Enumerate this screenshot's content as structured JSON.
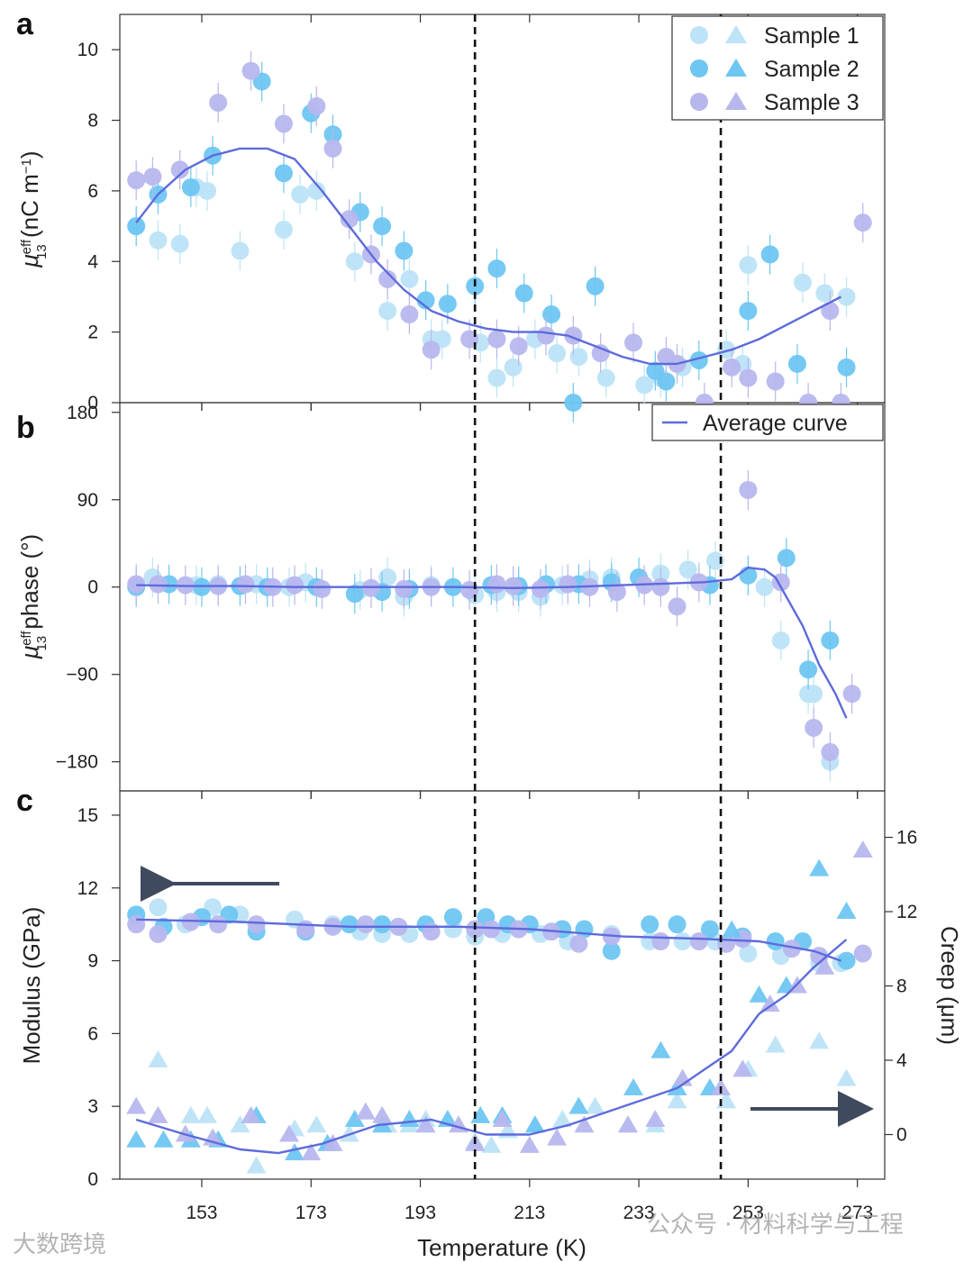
{
  "colors": {
    "sample1": "#BDE3F7",
    "sample2": "#6EC6F2",
    "sample3": "#B7B7EE",
    "average": "#5E6BDB",
    "arrow": "#3F4A5E",
    "frame": "#333333"
  },
  "chart_data": [
    {
      "type": "scatter",
      "panel_label": "a",
      "ylabel_main": "μ",
      "ylabel_sup": "eff",
      "ylabel_sub": "13",
      "ylabel_rest": " (nC m",
      "ylabel_exp": "−1",
      "ylabel_end": ")",
      "ylim": [
        0,
        11
      ],
      "yticks": [
        "0",
        "2",
        "4",
        "6",
        "8",
        "10"
      ],
      "ytick_values": [
        0,
        2,
        4,
        6,
        8,
        10
      ],
      "legend": [
        "Sample 1",
        "Sample 2",
        "Sample 3"
      ],
      "series": [
        {
          "name": "Sample 1",
          "x": [
            141,
            145,
            149,
            152,
            154,
            160,
            168,
            171,
            174,
            181,
            187,
            191,
            195,
            197,
            204,
            207,
            210,
            214,
            218,
            222,
            227,
            234,
            237,
            241,
            249,
            252,
            253,
            263,
            267,
            271
          ],
          "y": [
            5.0,
            4.6,
            4.5,
            6.1,
            6.0,
            4.3,
            4.9,
            5.9,
            6.0,
            4.0,
            2.6,
            3.5,
            1.8,
            1.8,
            1.7,
            0.7,
            1.0,
            1.8,
            1.4,
            1.3,
            0.7,
            0.5,
            0.7,
            1.0,
            1.5,
            1.1,
            3.9,
            3.4,
            3.1,
            3.0
          ]
        },
        {
          "name": "Sample 2",
          "x": [
            141,
            145,
            151,
            155,
            164,
            168,
            173,
            177,
            182,
            186,
            190,
            194,
            198,
            203,
            207,
            212,
            217,
            221,
            225,
            236,
            238,
            244,
            253,
            257,
            262,
            271
          ],
          "y": [
            5.0,
            5.9,
            6.1,
            7.0,
            9.1,
            6.5,
            8.2,
            7.6,
            5.4,
            5.0,
            4.3,
            2.9,
            2.8,
            3.3,
            3.8,
            3.1,
            2.5,
            0.0,
            3.3,
            0.9,
            0.6,
            1.2,
            2.6,
            4.2,
            1.1,
            1.0
          ]
        },
        {
          "name": "Sample 3",
          "x": [
            141,
            144,
            149,
            156,
            162,
            168,
            174,
            177,
            180,
            184,
            187,
            191,
            195,
            202,
            207,
            211,
            216,
            221,
            226,
            232,
            238,
            240,
            245,
            250,
            253,
            258,
            264,
            268,
            270,
            274
          ],
          "y": [
            6.3,
            6.4,
            6.6,
            8.5,
            9.4,
            7.9,
            8.4,
            7.2,
            5.2,
            4.2,
            3.5,
            2.5,
            1.5,
            1.8,
            1.8,
            1.6,
            1.9,
            1.9,
            1.4,
            1.7,
            1.3,
            1.1,
            0.0,
            1.0,
            0.7,
            0.6,
            0.0,
            2.6,
            0.0,
            5.1
          ]
        }
      ],
      "average_curve": {
        "x": [
          141,
          145,
          150,
          155,
          160,
          165,
          170,
          175,
          180,
          185,
          190,
          195,
          200,
          205,
          210,
          215,
          220,
          225,
          230,
          235,
          240,
          245,
          250,
          255,
          260,
          265,
          270
        ],
        "y": [
          5.1,
          5.9,
          6.6,
          7.0,
          7.2,
          7.2,
          6.9,
          6.0,
          5.0,
          4.0,
          3.2,
          2.6,
          2.3,
          2.1,
          2.0,
          2.0,
          1.9,
          1.6,
          1.3,
          1.1,
          1.1,
          1.3,
          1.5,
          1.8,
          2.2,
          2.6,
          3.0
        ]
      }
    },
    {
      "type": "scatter",
      "panel_label": "b",
      "ylabel_main": "μ",
      "ylabel_sup": "eff",
      "ylabel_sub": "13",
      "ylabel_rest": " phase (°)",
      "ylim": [
        -210,
        190
      ],
      "yticks": [
        "180",
        "90",
        "0",
        "−90",
        "−180"
      ],
      "ytick_values": [
        180,
        90,
        0,
        -90,
        -180
      ],
      "legend": [
        "Average curve"
      ],
      "series": [
        {
          "name": "Sample 1",
          "x": [
            144,
            152,
            156,
            163,
            169,
            172,
            182,
            187,
            190,
            195,
            203,
            207,
            211,
            215,
            219,
            224,
            228,
            237,
            242,
            247,
            256,
            259,
            264,
            265,
            268
          ],
          "y": [
            10,
            2,
            3,
            3,
            0,
            5,
            -3,
            10,
            -10,
            2,
            -8,
            -5,
            -5,
            -10,
            2,
            8,
            10,
            14,
            18,
            27,
            0,
            -55,
            -110,
            -110,
            -180
          ]
        },
        {
          "name": "Sample 2",
          "x": [
            141,
            147,
            153,
            160,
            165,
            174,
            181,
            186,
            191,
            199,
            206,
            211,
            216,
            222,
            228,
            233,
            246,
            253,
            260,
            264,
            268
          ],
          "y": [
            0,
            3,
            0,
            1,
            0,
            0,
            -7,
            -5,
            -2,
            0,
            2,
            1,
            3,
            3,
            5,
            10,
            2,
            12,
            30,
            -85,
            -55
          ]
        },
        {
          "name": "Sample 3",
          "x": [
            141,
            145,
            150,
            156,
            161,
            166,
            170,
            175,
            184,
            190,
            195,
            202,
            207,
            210,
            215,
            220,
            224,
            229,
            234,
            237,
            240,
            244,
            253,
            259,
            265,
            268,
            272
          ],
          "y": [
            3,
            3,
            2,
            1,
            3,
            0,
            2,
            -2,
            -1,
            -2,
            0,
            -3,
            3,
            1,
            -2,
            3,
            0,
            -5,
            2,
            0,
            -20,
            5,
            100,
            5,
            -145,
            -170,
            -110
          ]
        }
      ],
      "average_curve": {
        "x": [
          141,
          150,
          160,
          170,
          180,
          190,
          200,
          210,
          220,
          230,
          240,
          245,
          250,
          253,
          256,
          258,
          260,
          263,
          266,
          269,
          271
        ],
        "y": [
          2,
          1,
          1,
          0,
          0,
          0,
          0,
          -1,
          0,
          2,
          4,
          5,
          8,
          20,
          18,
          10,
          -10,
          -40,
          -80,
          -110,
          -135
        ]
      }
    },
    {
      "type": "scatter",
      "panel_label": "c",
      "ylabel": "Modulus (GPa)",
      "ylabel_right": "Creep (μm)",
      "xlabel": "Temperature (K)",
      "xlim": [
        138,
        278
      ],
      "xticks": [
        "153",
        "173",
        "193",
        "213",
        "233",
        "253",
        "273"
      ],
      "xtick_values": [
        153,
        173,
        193,
        213,
        233,
        253,
        273
      ],
      "ylim": [
        0,
        16
      ],
      "yticks": [
        "0",
        "3",
        "6",
        "9",
        "12",
        "15"
      ],
      "ytick_values": [
        0,
        3,
        6,
        9,
        12,
        15
      ],
      "ylim_right": [
        -2.4,
        18.5
      ],
      "yticks_right": [
        "0",
        "4",
        "8",
        "12",
        "16"
      ],
      "ytick_values_right": [
        0,
        4,
        8,
        12,
        16
      ],
      "modulus_series": [
        {
          "name": "Sample 1",
          "x": [
            141,
            145,
            150,
            155,
            160,
            170,
            177,
            182,
            186,
            191,
            199,
            203,
            208,
            215,
            220,
            228,
            235,
            241,
            247,
            253,
            259,
            266,
            270
          ],
          "y": [
            10.9,
            11.2,
            10.5,
            11.2,
            10.9,
            10.7,
            10.5,
            10.2,
            10.1,
            10.1,
            10.3,
            10.0,
            10.1,
            10.1,
            9.8,
            10.1,
            9.8,
            9.8,
            9.8,
            9.3,
            9.2,
            8.9,
            8.9
          ]
        },
        {
          "name": "Sample 2",
          "x": [
            141,
            146,
            153,
            158,
            163,
            172,
            180,
            186,
            194,
            199,
            205,
            209,
            213,
            219,
            223,
            228,
            235,
            240,
            246,
            252,
            258,
            263,
            271
          ],
          "y": [
            10.9,
            10.4,
            10.8,
            10.9,
            10.2,
            10.2,
            10.5,
            10.5,
            10.5,
            10.8,
            10.8,
            10.5,
            10.5,
            10.3,
            10.3,
            9.4,
            10.5,
            10.5,
            10.3,
            10.0,
            9.8,
            9.8,
            9.0
          ]
        },
        {
          "name": "Sample 3",
          "x": [
            141,
            145,
            151,
            156,
            163,
            172,
            177,
            183,
            189,
            195,
            203,
            206,
            211,
            217,
            222,
            228,
            237,
            244,
            249,
            252,
            261,
            266,
            274
          ],
          "y": [
            10.5,
            10.1,
            10.6,
            10.5,
            10.5,
            10.3,
            10.4,
            10.5,
            10.4,
            10.2,
            10.3,
            10.3,
            10.3,
            10.2,
            9.7,
            10.0,
            9.8,
            9.8,
            9.7,
            9.9,
            9.5,
            9.2,
            9.3
          ]
        }
      ],
      "modulus_average": {
        "x": [
          141,
          160,
          180,
          200,
          213,
          230,
          245,
          255,
          265,
          270
        ],
        "y": [
          10.7,
          10.6,
          10.4,
          10.4,
          10.3,
          10.0,
          9.9,
          9.8,
          9.4,
          9.0
        ]
      },
      "creep_series": [
        {
          "name": "Sample 1",
          "x": [
            145,
            151,
            154,
            160,
            163,
            170,
            174,
            180,
            187,
            191,
            194,
            203,
            206,
            209,
            214,
            219,
            225,
            231,
            236,
            240,
            249,
            253,
            258,
            266,
            271
          ],
          "y": [
            4.0,
            1.0,
            1.0,
            0.5,
            -1.7,
            0.3,
            0.5,
            0.0,
            0.5,
            0.5,
            0.8,
            -0.4,
            -0.6,
            0.2,
            0.5,
            0.8,
            1.5,
            0.5,
            0.5,
            1.8,
            1.8,
            3.5,
            4.8,
            5.0,
            3.0
          ]
        },
        {
          "name": "Sample 2",
          "x": [
            141,
            146,
            151,
            156,
            163,
            170,
            176,
            181,
            186,
            191,
            198,
            204,
            208,
            214,
            222,
            232,
            237,
            240,
            246,
            250,
            255,
            260,
            266,
            271
          ],
          "y": [
            -0.3,
            -0.3,
            -0.3,
            -0.3,
            1.0,
            -1.0,
            -0.5,
            0.8,
            0.5,
            0.8,
            0.8,
            1.0,
            1.0,
            0.5,
            1.5,
            2.5,
            4.5,
            2.5,
            2.5,
            11.0,
            7.5,
            8.0,
            14.3,
            12.0
          ]
        },
        {
          "name": "Sample 3",
          "x": [
            141,
            145,
            150,
            155,
            162,
            169,
            173,
            177,
            183,
            186,
            194,
            200,
            203,
            208,
            213,
            218,
            223,
            231,
            236,
            241,
            248,
            252,
            257,
            262,
            267,
            274
          ],
          "y": [
            1.5,
            1.0,
            0.0,
            -0.2,
            1.0,
            0.0,
            -1.0,
            -0.5,
            1.2,
            1.0,
            0.5,
            0.5,
            -0.5,
            0.8,
            -0.6,
            -0.2,
            0.5,
            0.5,
            0.8,
            3.0,
            2.5,
            3.5,
            7.0,
            8.0,
            9.0,
            15.3
          ]
        }
      ],
      "creep_average": {
        "x": [
          141,
          150,
          160,
          167,
          175,
          185,
          195,
          205,
          213,
          220,
          230,
          240,
          245,
          250,
          255,
          260,
          265,
          271
        ],
        "y": [
          0.8,
          0.0,
          -0.8,
          -1.0,
          -0.5,
          0.5,
          0.8,
          0.0,
          0.0,
          0.5,
          1.5,
          2.5,
          3.5,
          4.5,
          6.5,
          7.5,
          9.0,
          10.5
        ]
      }
    }
  ],
  "vertical_lines_x": [
    203,
    248
  ],
  "watermarks": {
    "left": "大数跨境",
    "right": "公众号 · 材料科学与工程"
  }
}
